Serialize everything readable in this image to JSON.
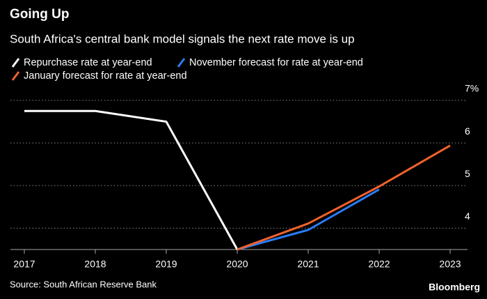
{
  "chart_data": {
    "type": "line",
    "title": "Going Up",
    "subtitle": "South Africa's central bank model signals the next rate move is up",
    "source": "Source: South African Reserve Bank",
    "brand": "Bloomberg",
    "categories": [
      "2017",
      "2018",
      "2019",
      "2020",
      "2021",
      "2022",
      "2023"
    ],
    "series": [
      {
        "name": "Repurchase rate at year-end",
        "color": "#ffffff",
        "values": [
          6.75,
          6.75,
          6.5,
          3.5,
          null,
          null,
          null
        ]
      },
      {
        "name": "November forecast for rate at year-end",
        "color": "#2a7cf6",
        "values": [
          null,
          null,
          null,
          3.5,
          3.96,
          4.91,
          null
        ]
      },
      {
        "name": "January forecast for rate at year-end",
        "color": "#f0622d",
        "values": [
          null,
          null,
          null,
          3.5,
          4.11,
          4.98,
          5.94
        ]
      }
    ],
    "ylim": [
      3.5,
      7
    ],
    "yticks": [
      4,
      5,
      6,
      {
        "value": 7,
        "label": "7%"
      }
    ],
    "grid": true
  }
}
